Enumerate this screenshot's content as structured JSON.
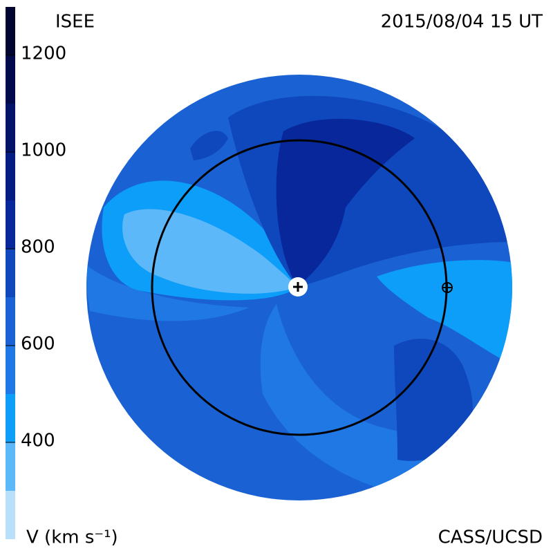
{
  "chart_data": {
    "type": "velocity-map",
    "title": "ISEE",
    "subtitle": "2015/08/04 15 UT",
    "colorbar_label": "V (km s⁻¹)",
    "credit": "CASS/UCSD",
    "bins": [
      200,
      300,
      400,
      500,
      600,
      700,
      800,
      900,
      1000,
      1100,
      1200,
      1300
    ],
    "colors": [
      "#b8e0fb",
      "#5cb8f8",
      "#0c9ef8",
      "#1f78e4",
      "#1a62d4",
      "#0f48bc",
      "#07279a",
      "#051c82",
      "#041268",
      "#030a4c",
      "#020530"
    ],
    "ylim": [
      200,
      1300
    ],
    "yticks": [
      400,
      600,
      800,
      1000,
      1200
    ]
  }
}
